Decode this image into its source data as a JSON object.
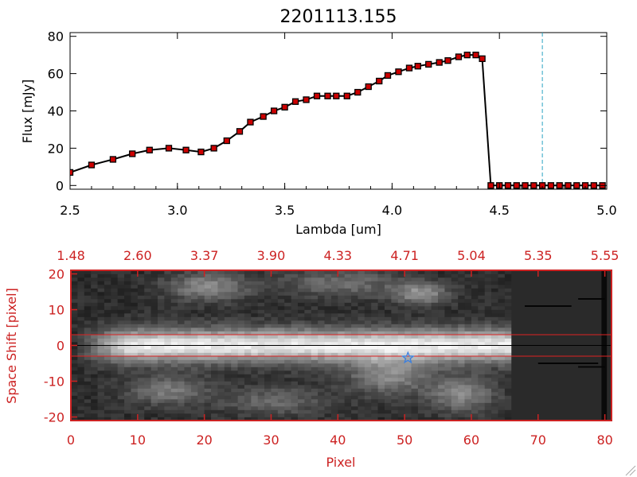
{
  "chart_data": [
    {
      "type": "line",
      "title": "2201113.155",
      "xlabel": "Lambda [um]",
      "ylabel": "Flux [mJy]",
      "xlim": [
        2.5,
        5.0
      ],
      "ylim": [
        -2,
        82
      ],
      "xticks": [
        "2.5",
        "3.0",
        "3.5",
        "4.0",
        "4.5",
        "5.0"
      ],
      "yticks": [
        "0",
        "20",
        "40",
        "60",
        "80"
      ],
      "marker_color": "#cc0000",
      "line_color": "#000000",
      "reference_line": {
        "x": 4.7,
        "color": "#2aa3c4"
      },
      "series": [
        {
          "x": [
            2.5,
            2.6,
            2.7,
            2.79,
            2.87,
            2.96,
            3.04,
            3.11,
            3.17,
            3.23,
            3.29,
            3.34,
            3.4,
            3.45,
            3.5,
            3.55,
            3.6,
            3.65,
            3.7,
            3.74,
            3.79,
            3.84,
            3.89,
            3.94,
            3.98,
            4.03,
            4.08,
            4.12,
            4.17,
            4.22,
            4.26,
            4.31,
            4.35,
            4.39,
            4.42,
            4.46,
            4.5,
            4.54,
            4.58,
            4.62,
            4.66,
            4.7,
            4.74,
            4.78,
            4.82,
            4.86,
            4.9,
            4.94,
            4.98
          ],
          "y": [
            7,
            11,
            14,
            17,
            19,
            20,
            19,
            18,
            20,
            24,
            29,
            34,
            37,
            40,
            42,
            45,
            46,
            48,
            48,
            48,
            48,
            50,
            53,
            56,
            59,
            61,
            63,
            64,
            65,
            66,
            67,
            69,
            70,
            70,
            68,
            0,
            0,
            0,
            0,
            0,
            0,
            0,
            0,
            0,
            0,
            0,
            0,
            0,
            0
          ],
          "errors": [
            1,
            1,
            1.5,
            1,
            1,
            1,
            1,
            1,
            1,
            1,
            1,
            1,
            1,
            1,
            1,
            1,
            1,
            1,
            1,
            1,
            1,
            1,
            1,
            1,
            1,
            1,
            1,
            1,
            1,
            1,
            1,
            1,
            1,
            1,
            1,
            0,
            0,
            0,
            0,
            0,
            0,
            0,
            0,
            0,
            0,
            0,
            0,
            0,
            0
          ]
        }
      ]
    },
    {
      "type": "heatmap",
      "xlabel": "Pixel",
      "ylabel": "Space Shift [pixel]",
      "xlim": [
        0,
        81
      ],
      "ylim": [
        -21,
        21
      ],
      "xticks": [
        "0",
        "10",
        "20",
        "30",
        "40",
        "50",
        "60",
        "70",
        "80"
      ],
      "yticks": [
        "-20",
        "-10",
        "0",
        "10",
        "20"
      ],
      "top_ticks": [
        "1.48",
        "2.60",
        "3.37",
        "3.90",
        "4.33",
        "4.71",
        "5.04",
        "5.35",
        "5.55"
      ],
      "axis_color": "#cc2222",
      "trace_center": 0,
      "aperture": [
        -3,
        3
      ],
      "source_star": {
        "x": 50.5,
        "y": -3.5,
        "color": "#3a7fe0"
      },
      "dark_region_start": 66
    }
  ]
}
